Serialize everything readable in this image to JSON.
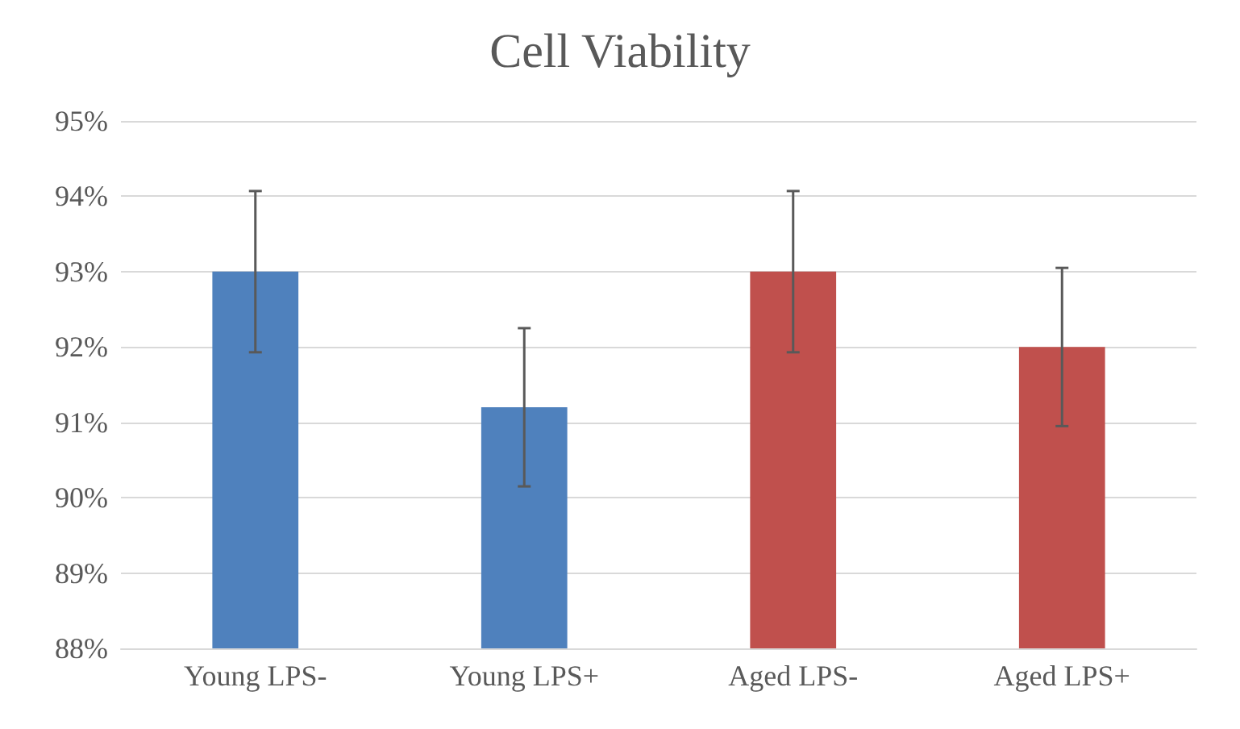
{
  "chart_data": {
    "type": "bar",
    "title": "Cell Viability",
    "categories": [
      "Young LPS-",
      "Young LPS+",
      "Aged LPS-",
      "Aged LPS+"
    ],
    "values": [
      93,
      91.2,
      93,
      92
    ],
    "colors": [
      "#4f81bd",
      "#4f81bd",
      "#c0504d",
      "#c0504d"
    ],
    "errors": [
      1.07,
      1.05,
      1.07,
      1.05
    ],
    "ylim": [
      88,
      95
    ],
    "yticks": [
      {
        "value": 88,
        "label": "88%"
      },
      {
        "value": 89,
        "label": "89%"
      },
      {
        "value": 90,
        "label": "90%"
      },
      {
        "value": 91,
        "label": "91%"
      },
      {
        "value": 92,
        "label": "92%"
      },
      {
        "value": 93,
        "label": "93%"
      },
      {
        "value": 94,
        "label": "94%"
      },
      {
        "value": 95,
        "label": "95%"
      }
    ],
    "grid": "y"
  }
}
